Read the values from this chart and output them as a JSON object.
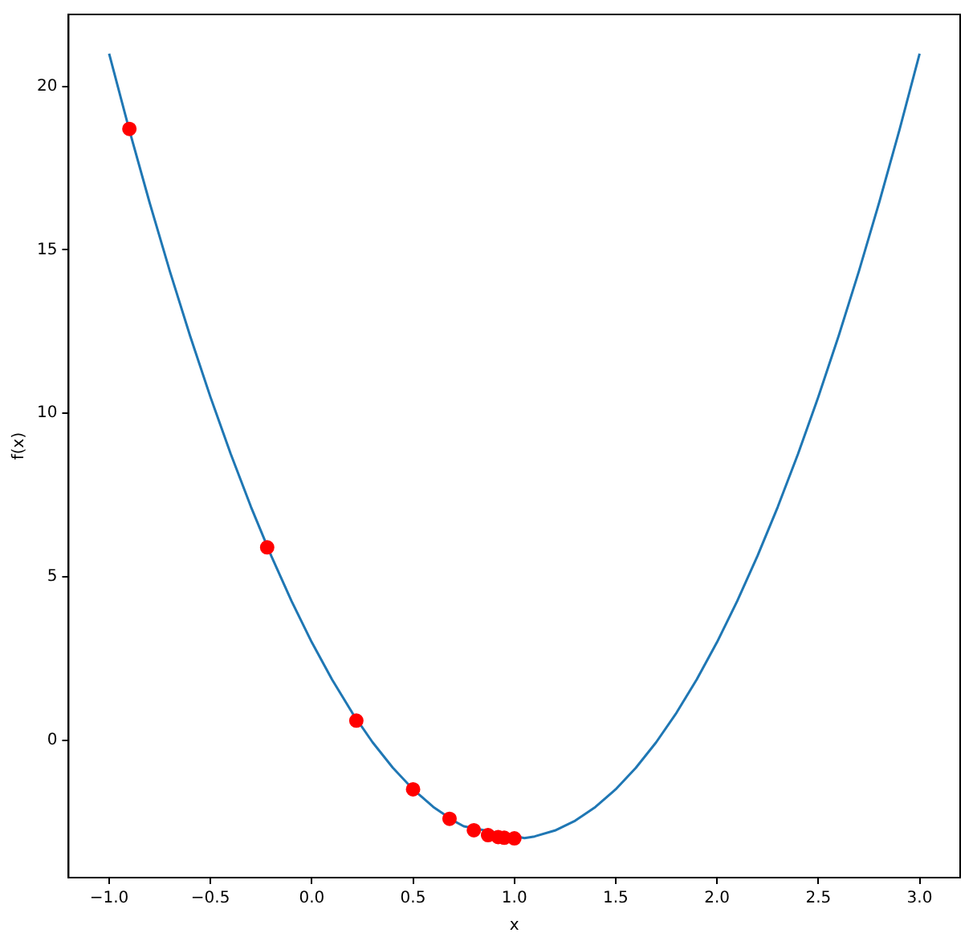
{
  "chart_data": {
    "type": "line",
    "xlabel": "x",
    "ylabel": "f(x)",
    "xlim": [
      -1.2,
      3.2
    ],
    "ylim": [
      -4.2,
      22.2
    ],
    "xticks": [
      {
        "value": -1,
        "label": "−1.0"
      },
      {
        "value": -0.5,
        "label": "−0.5"
      },
      {
        "value": 0,
        "label": "0.0"
      },
      {
        "value": 0.5,
        "label": "0.5"
      },
      {
        "value": 1,
        "label": "1.0"
      },
      {
        "value": 1.5,
        "label": "1.5"
      },
      {
        "value": 2,
        "label": "2.0"
      },
      {
        "value": 2.5,
        "label": "2.5"
      },
      {
        "value": 3,
        "label": "3.0"
      }
    ],
    "yticks": [
      0,
      5,
      10,
      15,
      20
    ],
    "grid": false,
    "legend": false,
    "series": [
      {
        "color": "#1f77b4",
        "marker": "none",
        "x": [
          -1,
          -0.9,
          -0.8,
          -0.7,
          -0.6,
          -0.5,
          -0.4,
          -0.3,
          -0.2,
          -0.1,
          0,
          0.1,
          0.2,
          0.3,
          0.4,
          0.5,
          0.6,
          0.7,
          0.75,
          1.05,
          1.1,
          1.2,
          1.3,
          1.4,
          1.5,
          1.6,
          1.7,
          1.8,
          1.9,
          2,
          2.1,
          2.2,
          2.3,
          2.4,
          2.5,
          2.6,
          2.7,
          2.8,
          2.9,
          3
        ],
        "values": [
          21,
          18.66,
          16.44,
          14.34,
          12.36,
          10.5,
          8.76,
          7.14,
          5.64,
          4.26,
          3,
          1.86,
          0.84,
          -0.06,
          -0.84,
          -1.5,
          -2.04,
          -2.46,
          -2.63,
          -2.99,
          -2.94,
          -2.76,
          -2.46,
          -2.04,
          -1.5,
          -0.84,
          -0.06,
          0.84,
          1.86,
          3,
          4.26,
          5.64,
          7.14,
          8.76,
          10.5,
          12.36,
          14.34,
          16.44,
          18.66,
          21
        ]
      },
      {
        "type": "scatter",
        "color": "#ff0000",
        "marker": "circle",
        "x": [
          -0.9,
          -0.22,
          0.22,
          0.5,
          0.68,
          0.8,
          0.87,
          0.92,
          0.95,
          1.0
        ],
        "values": [
          18.7,
          5.9,
          0.6,
          -1.5,
          -2.4,
          -2.75,
          -2.9,
          -2.96,
          -2.98,
          -3.0
        ]
      }
    ]
  }
}
